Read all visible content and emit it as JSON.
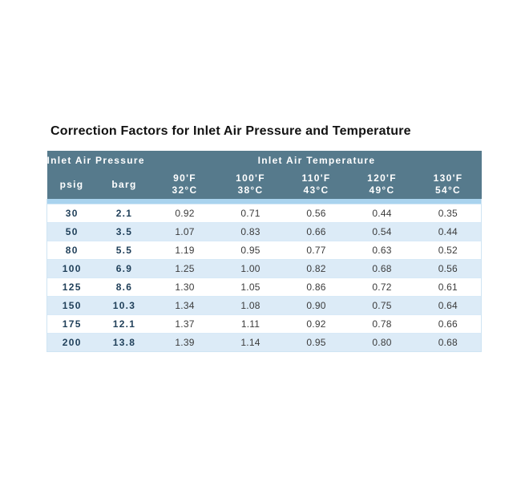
{
  "page": {
    "title": "Correction Factors for Inlet Air Pressure and Temperature"
  },
  "table": {
    "group_headers": [
      {
        "label": "Inlet Air Pressure"
      },
      {
        "label": "Inlet Air Temperature"
      }
    ],
    "columns": [
      {
        "label": "psig"
      },
      {
        "label": "barg"
      },
      {
        "label_f": "90'F",
        "label_c": "32°C"
      },
      {
        "label_f": "100'F",
        "label_c": "38°C"
      },
      {
        "label_f": "110'F",
        "label_c": "43°C"
      },
      {
        "label_f": "120'F",
        "label_c": "49°C"
      },
      {
        "label_f": "130'F",
        "label_c": "54°C"
      }
    ],
    "rows": [
      {
        "psig": "30",
        "barg": "2.1",
        "factors": [
          "0.92",
          "0.71",
          "0.56",
          "0.44",
          "0.35"
        ]
      },
      {
        "psig": "50",
        "barg": "3.5",
        "factors": [
          "1.07",
          "0.83",
          "0.66",
          "0.54",
          "0.44"
        ]
      },
      {
        "psig": "80",
        "barg": "5.5",
        "factors": [
          "1.19",
          "0.95",
          "0.77",
          "0.63",
          "0.52"
        ]
      },
      {
        "psig": "100",
        "barg": "6.9",
        "factors": [
          "1.25",
          "1.00",
          "0.82",
          "0.68",
          "0.56"
        ]
      },
      {
        "psig": "125",
        "barg": "8.6",
        "factors": [
          "1.30",
          "1.05",
          "0.86",
          "0.72",
          "0.61"
        ]
      },
      {
        "psig": "150",
        "barg": "10.3",
        "factors": [
          "1.34",
          "1.08",
          "0.90",
          "0.75",
          "0.64"
        ]
      },
      {
        "psig": "175",
        "barg": "12.1",
        "factors": [
          "1.37",
          "1.11",
          "0.92",
          "0.78",
          "0.66"
        ]
      },
      {
        "psig": "200",
        "barg": "13.8",
        "factors": [
          "1.39",
          "1.14",
          "0.95",
          "0.80",
          "0.68"
        ]
      }
    ]
  },
  "style": {
    "header_bg": "#567a8c",
    "header_text": "#ffffff",
    "stripe_bg": "#dcebf7",
    "separator_bg": "#a9d3ee",
    "pressure_text": "#1e3e58",
    "factor_text": "#3b3b3b"
  },
  "chart_data": {
    "type": "table",
    "title": "Correction Factors for Inlet Air Pressure and Temperature",
    "column_groups": [
      {
        "label": "Inlet Air Pressure",
        "columns": [
          "psig",
          "barg"
        ]
      },
      {
        "label": "Inlet Air Temperature",
        "columns": [
          "90'F 32°C",
          "100'F 38°C",
          "110'F 43°C",
          "120'F 49°C",
          "130'F 54°C"
        ]
      }
    ],
    "columns": [
      "psig",
      "barg",
      "90'F / 32°C",
      "100'F / 38°C",
      "110'F / 43°C",
      "120'F / 49°C",
      "130'F / 54°C"
    ],
    "rows": [
      [
        30,
        2.1,
        0.92,
        0.71,
        0.56,
        0.44,
        0.35
      ],
      [
        50,
        3.5,
        1.07,
        0.83,
        0.66,
        0.54,
        0.44
      ],
      [
        80,
        5.5,
        1.19,
        0.95,
        0.77,
        0.63,
        0.52
      ],
      [
        100,
        6.9,
        1.25,
        1.0,
        0.82,
        0.68,
        0.56
      ],
      [
        125,
        8.6,
        1.3,
        1.05,
        0.86,
        0.72,
        0.61
      ],
      [
        150,
        10.3,
        1.34,
        1.08,
        0.9,
        0.75,
        0.64
      ],
      [
        175,
        12.1,
        1.37,
        1.11,
        0.92,
        0.78,
        0.66
      ],
      [
        200,
        13.8,
        1.39,
        1.14,
        0.95,
        0.8,
        0.68
      ]
    ]
  }
}
